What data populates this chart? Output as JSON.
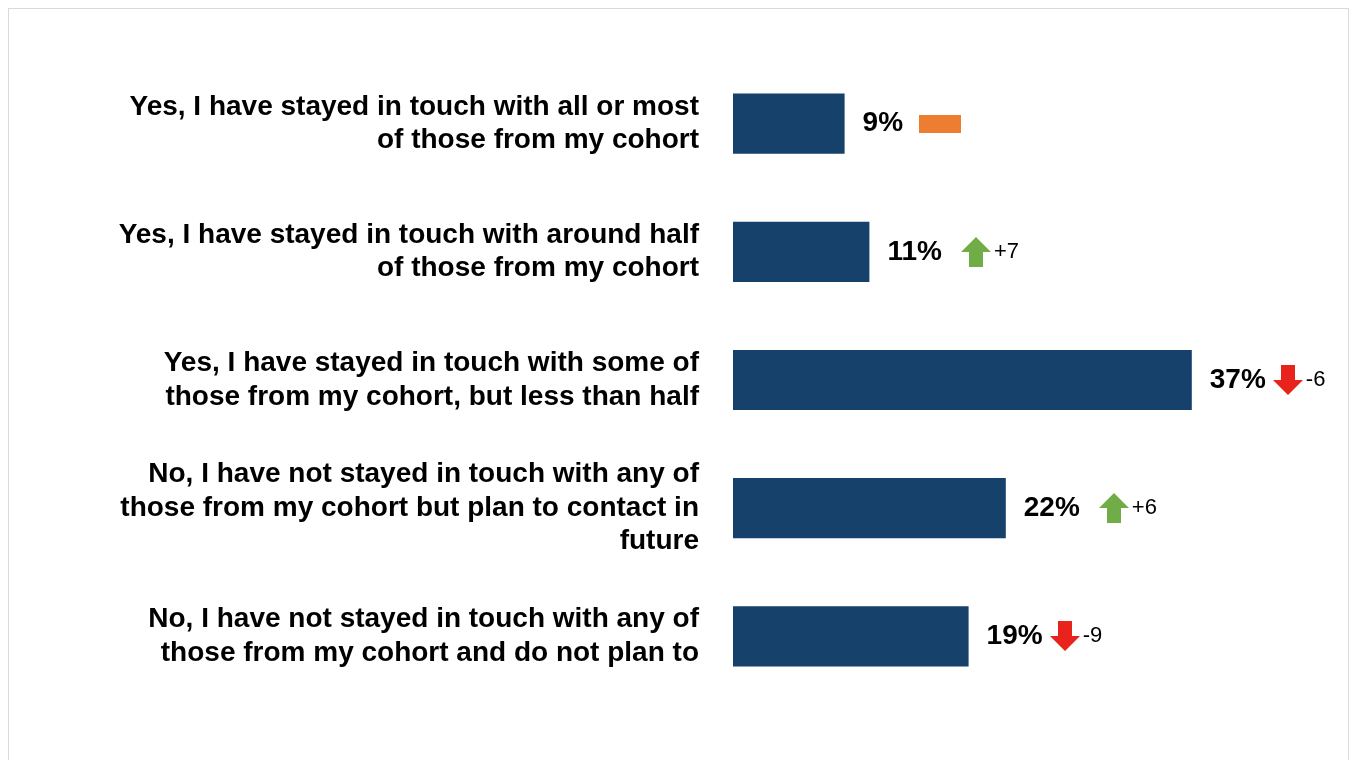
{
  "chart_data": {
    "type": "bar",
    "orientation": "horizontal",
    "categories": [
      "Yes, I have stayed in touch with all or most of those from my cohort",
      "Yes, I have stayed in touch with around half of those from my cohort",
      "Yes, I have stayed in touch with some of those from my cohort, but less than half",
      "No, I have not stayed in touch with any of those from my cohort but plan to contact in future",
      "No, I have not stayed in touch with any of those from my cohort and do not plan to"
    ],
    "values": [
      9,
      11,
      37,
      22,
      19
    ],
    "value_labels": [
      "9%",
      "11%",
      "37%",
      "22%",
      "19%"
    ],
    "color": "#15416b",
    "tick_labels": "y",
    "grid": false,
    "legend": false,
    "annotations": [
      "+7",
      "-6",
      "+6",
      "-9"
    ]
  }
}
